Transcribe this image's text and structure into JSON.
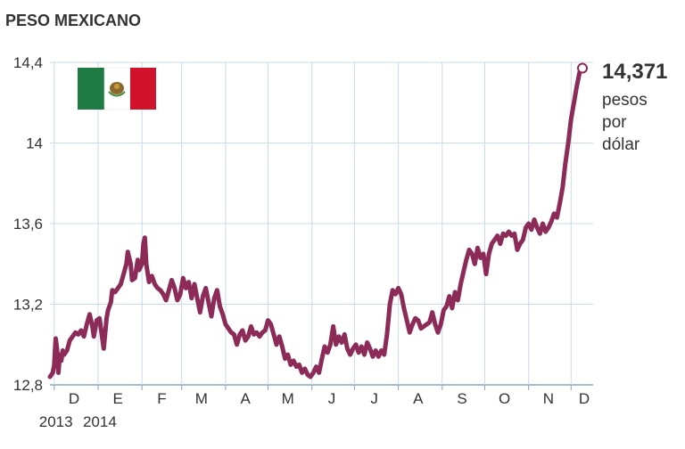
{
  "chart_data": {
    "type": "line",
    "title": "PESO MEXICANO",
    "xlabel": "",
    "ylabel": "",
    "ylim": [
      12.8,
      14.4
    ],
    "y_ticks": [
      {
        "value": 12.8,
        "label": "12,8"
      },
      {
        "value": 13.2,
        "label": "13,2"
      },
      {
        "value": 13.6,
        "label": "13,6"
      },
      {
        "value": 14.0,
        "label": "14"
      },
      {
        "value": 14.4,
        "label": "14,4"
      }
    ],
    "x_range": [
      "2013-11-28",
      "2014-12-09"
    ],
    "month_ticks": [
      {
        "label": "D",
        "date": "2013-12-15"
      },
      {
        "label": "E",
        "date": "2014-01-15"
      },
      {
        "label": "F",
        "date": "2014-02-15"
      },
      {
        "label": "M",
        "date": "2014-03-15"
      },
      {
        "label": "A",
        "date": "2014-04-15"
      },
      {
        "label": "M",
        "date": "2014-05-15"
      },
      {
        "label": "J",
        "date": "2014-06-15"
      },
      {
        "label": "J",
        "date": "2014-07-15"
      },
      {
        "label": "A",
        "date": "2014-08-15"
      },
      {
        "label": "S",
        "date": "2014-09-15"
      },
      {
        "label": "O",
        "date": "2014-10-15"
      },
      {
        "label": "N",
        "date": "2014-11-15"
      },
      {
        "label": "D",
        "date": "2014-12-15"
      }
    ],
    "gridlines_x": [
      "2013-12-01",
      "2014-01-01",
      "2014-02-01",
      "2014-03-01",
      "2014-04-01",
      "2014-05-01",
      "2014-06-01",
      "2014-07-01",
      "2014-08-01",
      "2014-09-01",
      "2014-10-01",
      "2014-11-01",
      "2014-12-01"
    ],
    "year_labels": [
      {
        "label": "2013",
        "date": "2013-12-01"
      },
      {
        "label": "2014",
        "date": "2014-01-01"
      }
    ],
    "grid": true,
    "series": [
      {
        "color": "#8c2b57",
        "points": [
          [
            "2013-11-28",
            12.84
          ],
          [
            "2013-11-30",
            12.86
          ],
          [
            "2013-12-01",
            12.9
          ],
          [
            "2013-12-02",
            13.03
          ],
          [
            "2013-12-03",
            12.98
          ],
          [
            "2013-12-04",
            12.86
          ],
          [
            "2013-12-05",
            12.95
          ],
          [
            "2013-12-06",
            12.92
          ],
          [
            "2013-12-07",
            12.97
          ],
          [
            "2013-12-08",
            12.95
          ],
          [
            "2013-12-10",
            12.97
          ],
          [
            "2013-12-12",
            13.02
          ],
          [
            "2013-12-14",
            13.04
          ],
          [
            "2013-12-16",
            13.06
          ],
          [
            "2013-12-18",
            13.05
          ],
          [
            "2013-12-20",
            13.07
          ],
          [
            "2013-12-22",
            13.04
          ],
          [
            "2013-12-24",
            13.1
          ],
          [
            "2013-12-26",
            13.15
          ],
          [
            "2013-12-28",
            13.09
          ],
          [
            "2013-12-29",
            13.04
          ],
          [
            "2013-12-31",
            13.12
          ],
          [
            "2014-01-02",
            13.13
          ],
          [
            "2014-01-04",
            13.03
          ],
          [
            "2014-01-05",
            12.98
          ],
          [
            "2014-01-07",
            13.13
          ],
          [
            "2014-01-08",
            13.17
          ],
          [
            "2014-01-10",
            13.21
          ],
          [
            "2014-01-11",
            13.27
          ],
          [
            "2014-01-13",
            13.26
          ],
          [
            "2014-01-15",
            13.28
          ],
          [
            "2014-01-17",
            13.3
          ],
          [
            "2014-01-19",
            13.35
          ],
          [
            "2014-01-21",
            13.4
          ],
          [
            "2014-01-22",
            13.46
          ],
          [
            "2014-01-24",
            13.4
          ],
          [
            "2014-01-25",
            13.32
          ],
          [
            "2014-01-27",
            13.33
          ],
          [
            "2014-01-29",
            13.42
          ],
          [
            "2014-01-30",
            13.37
          ],
          [
            "2014-02-01",
            13.4
          ],
          [
            "2014-02-02",
            13.5
          ],
          [
            "2014-02-03",
            13.53
          ],
          [
            "2014-02-04",
            13.4
          ],
          [
            "2014-02-06",
            13.31
          ],
          [
            "2014-02-08",
            13.34
          ],
          [
            "2014-02-10",
            13.3
          ],
          [
            "2014-02-12",
            13.28
          ],
          [
            "2014-02-14",
            13.27
          ],
          [
            "2014-02-16",
            13.25
          ],
          [
            "2014-02-18",
            13.22
          ],
          [
            "2014-02-20",
            13.27
          ],
          [
            "2014-02-22",
            13.32
          ],
          [
            "2014-02-24",
            13.28
          ],
          [
            "2014-02-26",
            13.22
          ],
          [
            "2014-02-28",
            13.25
          ],
          [
            "2014-03-02",
            13.33
          ],
          [
            "2014-03-04",
            13.28
          ],
          [
            "2014-03-06",
            13.31
          ],
          [
            "2014-03-08",
            13.23
          ],
          [
            "2014-03-10",
            13.3
          ],
          [
            "2014-03-12",
            13.23
          ],
          [
            "2014-03-14",
            13.16
          ],
          [
            "2014-03-16",
            13.24
          ],
          [
            "2014-03-18",
            13.28
          ],
          [
            "2014-03-20",
            13.21
          ],
          [
            "2014-03-22",
            13.14
          ],
          [
            "2014-03-24",
            13.23
          ],
          [
            "2014-03-26",
            13.27
          ],
          [
            "2014-03-28",
            13.19
          ],
          [
            "2014-03-30",
            13.15
          ],
          [
            "2014-04-01",
            13.1
          ],
          [
            "2014-04-03",
            13.08
          ],
          [
            "2014-04-05",
            13.06
          ],
          [
            "2014-04-07",
            13.05
          ],
          [
            "2014-04-09",
            13.0
          ],
          [
            "2014-04-11",
            13.05
          ],
          [
            "2014-04-13",
            13.07
          ],
          [
            "2014-04-15",
            13.02
          ],
          [
            "2014-04-17",
            13.04
          ],
          [
            "2014-04-19",
            13.09
          ],
          [
            "2014-04-21",
            13.05
          ],
          [
            "2014-04-23",
            13.06
          ],
          [
            "2014-04-25",
            13.04
          ],
          [
            "2014-04-27",
            13.06
          ],
          [
            "2014-04-29",
            13.07
          ],
          [
            "2014-05-01",
            13.12
          ],
          [
            "2014-05-03",
            13.1
          ],
          [
            "2014-05-05",
            13.05
          ],
          [
            "2014-05-07",
            13.0
          ],
          [
            "2014-05-09",
            13.04
          ],
          [
            "2014-05-11",
            12.99
          ],
          [
            "2014-05-13",
            12.93
          ],
          [
            "2014-05-15",
            12.95
          ],
          [
            "2014-05-17",
            12.9
          ],
          [
            "2014-05-19",
            12.92
          ],
          [
            "2014-05-21",
            12.89
          ],
          [
            "2014-05-23",
            12.9
          ],
          [
            "2014-05-25",
            12.86
          ],
          [
            "2014-05-27",
            12.88
          ],
          [
            "2014-05-29",
            12.85
          ],
          [
            "2014-05-31",
            12.84
          ],
          [
            "2014-06-02",
            12.86
          ],
          [
            "2014-06-04",
            12.89
          ],
          [
            "2014-06-06",
            12.86
          ],
          [
            "2014-06-08",
            12.93
          ],
          [
            "2014-06-10",
            12.99
          ],
          [
            "2014-06-12",
            12.96
          ],
          [
            "2014-06-14",
            13.0
          ],
          [
            "2014-06-16",
            13.09
          ],
          [
            "2014-06-18",
            13.0
          ],
          [
            "2014-06-20",
            13.04
          ],
          [
            "2014-06-22",
            13.01
          ],
          [
            "2014-06-24",
            13.05
          ],
          [
            "2014-06-26",
            12.98
          ],
          [
            "2014-06-28",
            12.95
          ],
          [
            "2014-06-30",
            12.98
          ],
          [
            "2014-07-02",
            13.0
          ],
          [
            "2014-07-04",
            12.96
          ],
          [
            "2014-07-06",
            12.99
          ],
          [
            "2014-07-08",
            12.95
          ],
          [
            "2014-07-10",
            13.01
          ],
          [
            "2014-07-12",
            12.98
          ],
          [
            "2014-07-14",
            12.94
          ],
          [
            "2014-07-16",
            12.97
          ],
          [
            "2014-07-18",
            12.94
          ],
          [
            "2014-07-20",
            12.97
          ],
          [
            "2014-07-22",
            12.95
          ],
          [
            "2014-07-24",
            13.05
          ],
          [
            "2014-07-26",
            13.2
          ],
          [
            "2014-07-28",
            13.27
          ],
          [
            "2014-07-30",
            13.25
          ],
          [
            "2014-08-01",
            13.28
          ],
          [
            "2014-08-03",
            13.25
          ],
          [
            "2014-08-05",
            13.18
          ],
          [
            "2014-08-07",
            13.12
          ],
          [
            "2014-08-09",
            13.06
          ],
          [
            "2014-08-11",
            13.1
          ],
          [
            "2014-08-13",
            13.13
          ],
          [
            "2014-08-15",
            13.12
          ],
          [
            "2014-08-17",
            13.08
          ],
          [
            "2014-08-19",
            13.09
          ],
          [
            "2014-08-21",
            13.1
          ],
          [
            "2014-08-23",
            13.11
          ],
          [
            "2014-08-25",
            13.16
          ],
          [
            "2014-08-27",
            13.1
          ],
          [
            "2014-08-29",
            13.06
          ],
          [
            "2014-08-31",
            13.1
          ],
          [
            "2014-09-02",
            13.17
          ],
          [
            "2014-09-04",
            13.19
          ],
          [
            "2014-09-06",
            13.24
          ],
          [
            "2014-09-08",
            13.18
          ],
          [
            "2014-09-10",
            13.26
          ],
          [
            "2014-09-12",
            13.22
          ],
          [
            "2014-09-14",
            13.3
          ],
          [
            "2014-09-16",
            13.36
          ],
          [
            "2014-09-18",
            13.42
          ],
          [
            "2014-09-20",
            13.47
          ],
          [
            "2014-09-22",
            13.45
          ],
          [
            "2014-09-24",
            13.4
          ],
          [
            "2014-09-26",
            13.48
          ],
          [
            "2014-09-28",
            13.43
          ],
          [
            "2014-09-30",
            13.45
          ],
          [
            "2014-10-02",
            13.35
          ],
          [
            "2014-10-04",
            13.45
          ],
          [
            "2014-10-06",
            13.5
          ],
          [
            "2014-10-08",
            13.52
          ],
          [
            "2014-10-10",
            13.54
          ],
          [
            "2014-10-12",
            13.5
          ],
          [
            "2014-10-14",
            13.55
          ],
          [
            "2014-10-16",
            13.54
          ],
          [
            "2014-10-18",
            13.56
          ],
          [
            "2014-10-20",
            13.54
          ],
          [
            "2014-10-22",
            13.55
          ],
          [
            "2014-10-24",
            13.47
          ],
          [
            "2014-10-26",
            13.5
          ],
          [
            "2014-10-28",
            13.52
          ],
          [
            "2014-10-30",
            13.58
          ],
          [
            "2014-11-01",
            13.6
          ],
          [
            "2014-11-03",
            13.57
          ],
          [
            "2014-11-05",
            13.62
          ],
          [
            "2014-11-07",
            13.58
          ],
          [
            "2014-11-09",
            13.55
          ],
          [
            "2014-11-11",
            13.6
          ],
          [
            "2014-11-13",
            13.56
          ],
          [
            "2014-11-15",
            13.58
          ],
          [
            "2014-11-17",
            13.61
          ],
          [
            "2014-11-19",
            13.65
          ],
          [
            "2014-11-21",
            13.63
          ],
          [
            "2014-11-23",
            13.7
          ],
          [
            "2014-11-25",
            13.78
          ],
          [
            "2014-11-27",
            13.9
          ],
          [
            "2014-11-29",
            14.0
          ],
          [
            "2014-12-01",
            14.12
          ],
          [
            "2014-12-03",
            14.2
          ],
          [
            "2014-12-05",
            14.28
          ],
          [
            "2014-12-07",
            14.35
          ],
          [
            "2014-12-09",
            14.371
          ]
        ]
      }
    ],
    "end_value": {
      "label": "14,371",
      "unit_lines": [
        "pesos",
        "por",
        "dólar"
      ]
    },
    "flag_icon": "mexico-flag-icon",
    "colors": {
      "line": "#8c2b57",
      "grid": "#c9dbe8",
      "text": "#333333"
    }
  }
}
